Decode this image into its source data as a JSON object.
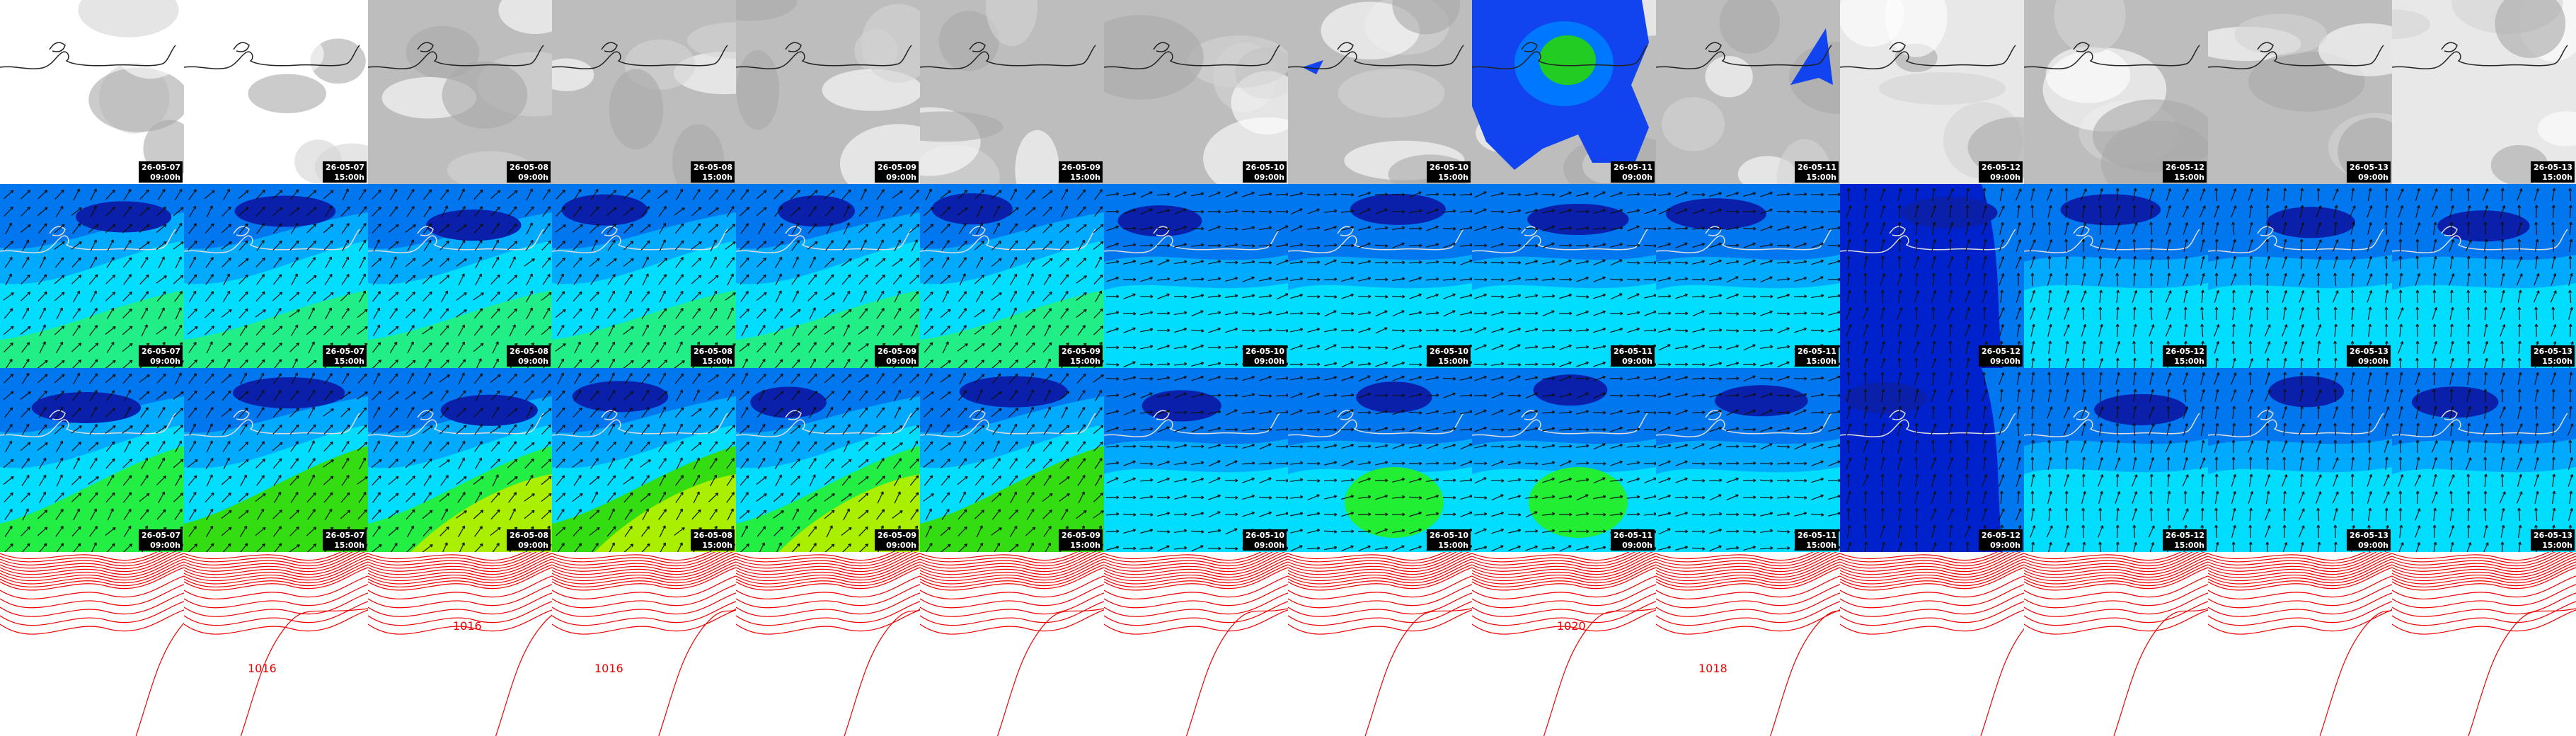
{
  "rows": [
    {
      "cells": [
        {
          "date": "26-05-07",
          "time": "09:00h"
        },
        {
          "date": "26-05-07",
          "time": "15:00h"
        },
        {
          "date": "26-05-08",
          "time": "09:00h"
        },
        {
          "date": "26-05-08",
          "time": "15:00h"
        },
        {
          "date": "26-05-09",
          "time": "09:00h"
        },
        {
          "date": "26-05-09",
          "time": "15:00h"
        },
        {
          "date": "26-05-10",
          "time": "09:00h"
        },
        {
          "date": "26-05-10",
          "time": "15:00h"
        },
        {
          "date": "26-05-11",
          "time": "09:00h"
        },
        {
          "date": "26-05-11",
          "time": "15:00h"
        },
        {
          "date": "26-05-12",
          "time": "09:00h"
        },
        {
          "date": "26-05-12",
          "time": "15:00h"
        },
        {
          "date": "26-05-13",
          "time": "09:00h"
        },
        {
          "date": "26-05-13",
          "time": "15:00h"
        }
      ]
    },
    {
      "cells": [
        {
          "date": "26-05-07",
          "time": "09:00h"
        },
        {
          "date": "26-05-07",
          "time": "15:00h"
        },
        {
          "date": "26-05-08",
          "time": "09:00h"
        },
        {
          "date": "26-05-08",
          "time": "15:00h"
        },
        {
          "date": "26-05-09",
          "time": "09:00h"
        },
        {
          "date": "26-05-09",
          "time": "15:00h"
        },
        {
          "date": "26-05-10",
          "time": "09:00h"
        },
        {
          "date": "26-05-10",
          "time": "15:00h"
        },
        {
          "date": "26-05-11",
          "time": "09:00h"
        },
        {
          "date": "26-05-11",
          "time": "15:00h"
        },
        {
          "date": "26-05-12",
          "time": "09:00h"
        },
        {
          "date": "26-05-12",
          "time": "15:00h"
        },
        {
          "date": "26-05-13",
          "time": "09:00h"
        },
        {
          "date": "26-05-13",
          "time": "15:00h"
        }
      ]
    },
    {
      "cells": [
        {
          "date": "26-05-07",
          "time": "09:00h"
        },
        {
          "date": "26-05-07",
          "time": "15:00h"
        },
        {
          "date": "26-05-08",
          "time": "09:00h"
        },
        {
          "date": "26-05-08",
          "time": "15:00h"
        },
        {
          "date": "26-05-09",
          "time": "09:00h"
        },
        {
          "date": "26-05-09",
          "time": "15:00h"
        },
        {
          "date": "26-05-10",
          "time": "09:00h"
        },
        {
          "date": "26-05-10",
          "time": "15:00h"
        },
        {
          "date": "26-05-11",
          "time": "09:00h"
        },
        {
          "date": "26-05-11",
          "time": "15:00h"
        },
        {
          "date": "26-05-12",
          "time": "09:00h"
        },
        {
          "date": "26-05-12",
          "time": "15:00h"
        },
        {
          "date": "26-05-13",
          "time": "09:00h"
        },
        {
          "date": "26-05-13",
          "time": "15:00h"
        }
      ]
    },
    {
      "cells": [
        {},
        {
          "label": "1016"
        },
        {
          "label": "1016"
        },
        {
          "label": "1016"
        },
        {},
        {},
        {},
        {},
        {
          "label": "1020"
        },
        {
          "label": "1018"
        },
        {},
        {},
        {},
        {}
      ]
    }
  ]
}
